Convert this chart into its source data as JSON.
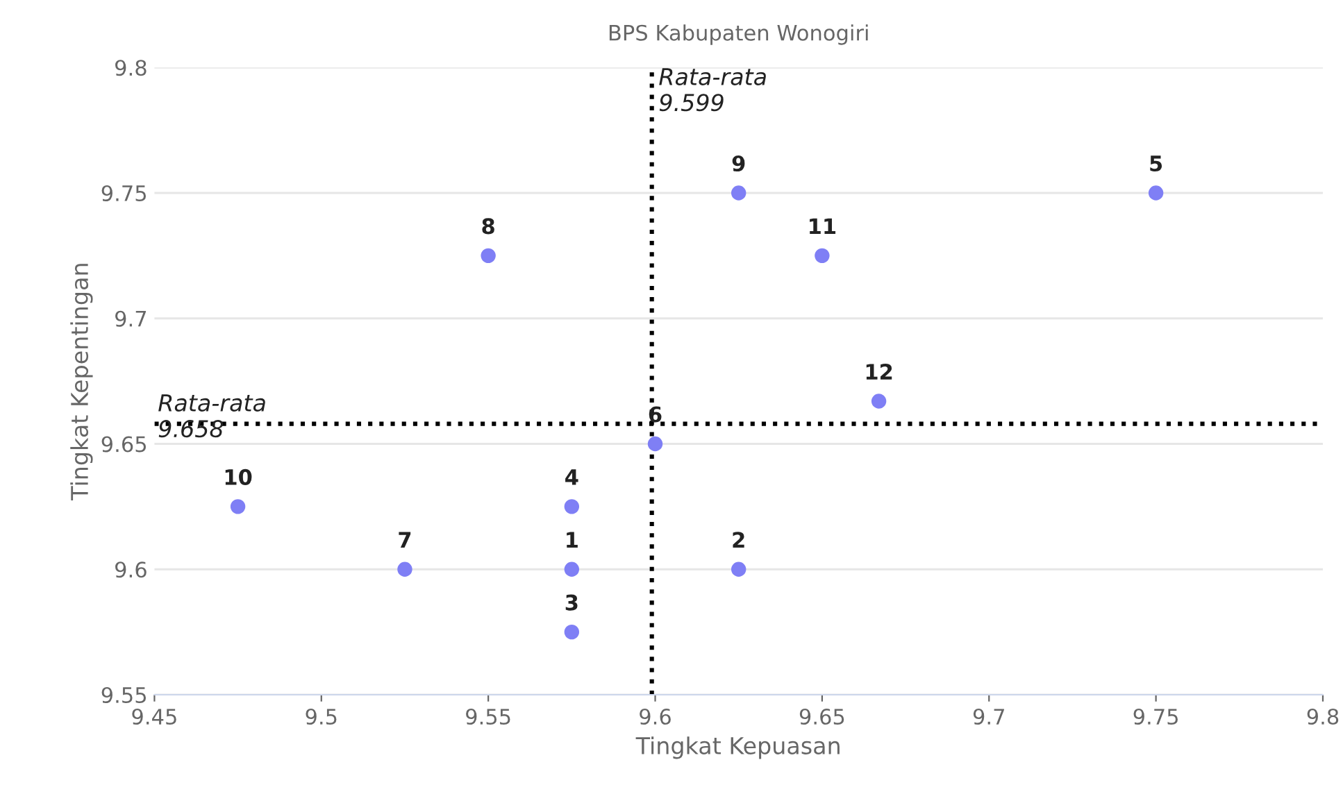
{
  "chart_data": {
    "type": "scatter",
    "title": "BPS Kabupaten Wonogiri",
    "xlabel": "Tingkat Kepuasan",
    "ylabel": "Tingkat Kepentingan",
    "series": [
      {
        "color": "#7f7ff5",
        "x": [
          9.575,
          9.625,
          9.575,
          9.575,
          9.75,
          9.6,
          9.525,
          9.55,
          9.625,
          9.475,
          9.65,
          9.667
        ],
        "values": [
          9.6,
          9.6,
          9.575,
          9.625,
          9.75,
          9.65,
          9.6,
          9.725,
          9.75,
          9.625,
          9.725,
          9.667
        ]
      }
    ],
    "annotations": [
      {
        "text": "1",
        "x": 9.575,
        "y": 9.6
      },
      {
        "text": "2",
        "x": 9.625,
        "y": 9.6
      },
      {
        "text": "3",
        "x": 9.575,
        "y": 9.575
      },
      {
        "text": "4",
        "x": 9.575,
        "y": 9.625
      },
      {
        "text": "5",
        "x": 9.75,
        "y": 9.75
      },
      {
        "text": "6",
        "x": 9.6,
        "y": 9.65
      },
      {
        "text": "7",
        "x": 9.525,
        "y": 9.6
      },
      {
        "text": "8",
        "x": 9.55,
        "y": 9.725
      },
      {
        "text": "9",
        "x": 9.625,
        "y": 9.75
      },
      {
        "text": "10",
        "x": 9.475,
        "y": 9.625
      },
      {
        "text": "11",
        "x": 9.65,
        "y": 9.725
      },
      {
        "text": "12",
        "x": 9.667,
        "y": 9.667
      }
    ],
    "ref_lines": [
      {
        "axis": "x",
        "value": 9.599,
        "label": "Rata-rata\n9.599",
        "color": "#000000",
        "line_style": "dotted"
      },
      {
        "axis": "y",
        "value": 9.658,
        "label": "Rata-rata\n9.658",
        "color": "#000000",
        "line_style": "dotted"
      }
    ],
    "xlim": [
      9.45,
      9.8
    ],
    "xticks": [
      9.45,
      9.5,
      9.55,
      9.6,
      9.65,
      9.7,
      9.75,
      9.8
    ],
    "ylim": [
      9.55,
      9.8
    ],
    "yticks": [
      9.55,
      9.6,
      9.65,
      9.7,
      9.75,
      9.8
    ],
    "grid": "y",
    "marker": "circle"
  }
}
